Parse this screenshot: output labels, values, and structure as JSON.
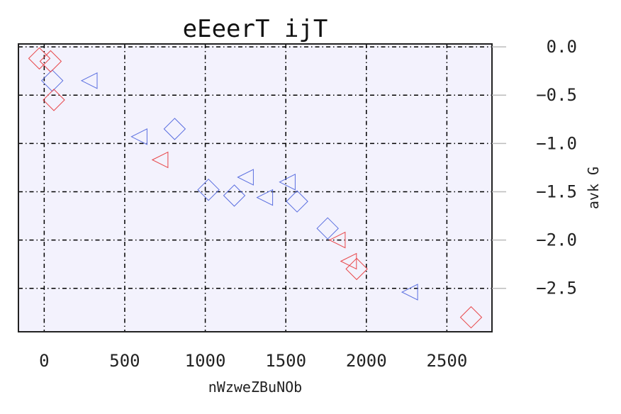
{
  "chart_data": {
    "type": "scatter",
    "title": "eEeerT ijT",
    "xlabel": "nWzweZBuNOb",
    "ylabel": "avk G",
    "xlim": [
      -160,
      2780
    ],
    "ylim": [
      -2.95,
      0.03
    ],
    "x_ticks": [
      0,
      500,
      1000,
      1500,
      2000,
      2500
    ],
    "x_tick_labels": [
      "0",
      "500",
      "1000",
      "1500",
      "2000",
      "2500"
    ],
    "y_ticks": [
      0.0,
      -0.5,
      -1.0,
      -1.5,
      -2.0,
      -2.5
    ],
    "y_tick_labels": [
      "0.0",
      "−0.5",
      "−1.0",
      "−1.5",
      "−2.0",
      "−2.5"
    ],
    "y_axis_side": "right",
    "grid": true,
    "background": "#f3f2fd",
    "series": [
      {
        "color": "#5a6fe0",
        "points": [
          {
            "x": 50,
            "y": -0.35,
            "marker": "diamond"
          },
          {
            "x": 280,
            "y": -0.35,
            "marker": "triangle-left"
          },
          {
            "x": 590,
            "y": -0.93,
            "marker": "triangle-left"
          },
          {
            "x": 810,
            "y": -0.85,
            "marker": "diamond"
          },
          {
            "x": 1020,
            "y": -1.48,
            "marker": "diamond"
          },
          {
            "x": 1180,
            "y": -1.54,
            "marker": "diamond"
          },
          {
            "x": 1250,
            "y": -1.35,
            "marker": "triangle-left"
          },
          {
            "x": 1370,
            "y": -1.56,
            "marker": "triangle-left"
          },
          {
            "x": 1510,
            "y": -1.4,
            "marker": "triangle-left"
          },
          {
            "x": 1570,
            "y": -1.6,
            "marker": "diamond"
          },
          {
            "x": 1760,
            "y": -1.88,
            "marker": "diamond"
          },
          {
            "x": 2270,
            "y": -2.54,
            "marker": "triangle-left"
          }
        ]
      },
      {
        "color": "#e8474a",
        "points": [
          {
            "x": -30,
            "y": -0.12,
            "marker": "diamond"
          },
          {
            "x": 40,
            "y": -0.15,
            "marker": "diamond"
          },
          {
            "x": 60,
            "y": -0.55,
            "marker": "diamond"
          },
          {
            "x": 720,
            "y": -1.17,
            "marker": "triangle-left"
          },
          {
            "x": 1820,
            "y": -2.0,
            "marker": "triangle-left"
          },
          {
            "x": 1890,
            "y": -2.22,
            "marker": "triangle-left"
          },
          {
            "x": 1940,
            "y": -2.3,
            "marker": "diamond"
          },
          {
            "x": 2650,
            "y": -2.8,
            "marker": "diamond"
          }
        ]
      }
    ]
  }
}
